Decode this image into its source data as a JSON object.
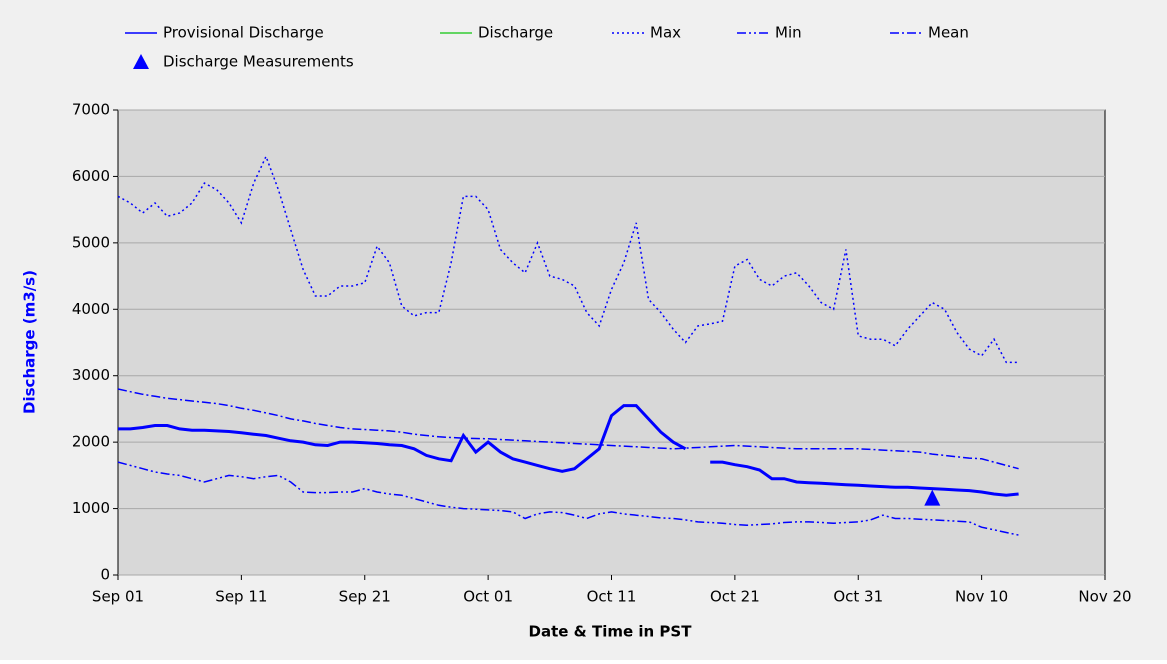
{
  "chart_data": {
    "type": "line",
    "xlabel": "Date & Time in PST",
    "ylabel": "Discharge (m3/s)",
    "x": [
      "Sep 01",
      "Sep 02",
      "Sep 03",
      "Sep 04",
      "Sep 05",
      "Sep 06",
      "Sep 07",
      "Sep 08",
      "Sep 09",
      "Sep 10",
      "Sep 11",
      "Sep 12",
      "Sep 13",
      "Sep 14",
      "Sep 15",
      "Sep 16",
      "Sep 17",
      "Sep 18",
      "Sep 19",
      "Sep 20",
      "Sep 21",
      "Sep 22",
      "Sep 23",
      "Sep 24",
      "Sep 25",
      "Sep 26",
      "Sep 27",
      "Sep 28",
      "Sep 29",
      "Sep 30",
      "Oct 01",
      "Oct 02",
      "Oct 03",
      "Oct 04",
      "Oct 05",
      "Oct 06",
      "Oct 07",
      "Oct 08",
      "Oct 09",
      "Oct 10",
      "Oct 11",
      "Oct 12",
      "Oct 13",
      "Oct 14",
      "Oct 15",
      "Oct 16",
      "Oct 17",
      "Oct 18",
      "Oct 19",
      "Oct 20",
      "Oct 21",
      "Oct 22",
      "Oct 23",
      "Oct 24",
      "Oct 25",
      "Oct 26",
      "Oct 27",
      "Oct 28",
      "Oct 29",
      "Oct 30",
      "Oct 31",
      "Nov 01",
      "Nov 02",
      "Nov 03",
      "Nov 04",
      "Nov 05",
      "Nov 06",
      "Nov 07",
      "Nov 08",
      "Nov 09",
      "Nov 10",
      "Nov 11",
      "Nov 12",
      "Nov 13"
    ],
    "series": [
      {
        "name": "Provisional Discharge",
        "color": "#0000ff",
        "style": "solid",
        "width": 3,
        "values": [
          2200,
          2200,
          2220,
          2250,
          2250,
          2200,
          2180,
          2180,
          2170,
          2160,
          2140,
          2120,
          2100,
          2060,
          2020,
          2000,
          1960,
          1950,
          2000,
          2000,
          1990,
          1980,
          1960,
          1950,
          1900,
          1800,
          1750,
          1720,
          2100,
          1850,
          2000,
          1850,
          1750,
          1700,
          1650,
          1600,
          1560,
          1600,
          1750,
          1900,
          2400,
          2550,
          2550,
          2350,
          2150,
          2000,
          1900,
          null,
          1700,
          1700,
          1660,
          1630,
          1580,
          1450,
          1450,
          1400,
          1390,
          1380,
          1370,
          1360,
          1350,
          1340,
          1330,
          1320,
          1320,
          1310,
          1300,
          1290,
          1280,
          1270,
          1250,
          1220,
          1200,
          1220
        ]
      },
      {
        "name": "Discharge",
        "color": "#33cc33",
        "style": "solid",
        "width": 1.5,
        "values": [
          null,
          null,
          null,
          null,
          null,
          null,
          null,
          null,
          null,
          null,
          null,
          null,
          null,
          null,
          null,
          null,
          null,
          null,
          null,
          null,
          null,
          null,
          null,
          null,
          null,
          null,
          null,
          null,
          null,
          null,
          null,
          null,
          null,
          null,
          null,
          null,
          null,
          null,
          null,
          null,
          null,
          null,
          null,
          null,
          null,
          null,
          null,
          null,
          null,
          null,
          null,
          null,
          null,
          null,
          null,
          null,
          null,
          null,
          null,
          null,
          null,
          null,
          null,
          null,
          null,
          null,
          null,
          null,
          null,
          null,
          null,
          null,
          null,
          null
        ]
      },
      {
        "name": "Max",
        "color": "#0000ff",
        "style": "dotted",
        "width": 1.5,
        "values": [
          5700,
          5600,
          5450,
          5600,
          5400,
          5450,
          5600,
          5900,
          5800,
          5600,
          5300,
          5900,
          6300,
          5800,
          5200,
          4600,
          4200,
          4200,
          4350,
          4350,
          4400,
          4950,
          4700,
          4050,
          3900,
          3950,
          3950,
          4700,
          5700,
          5700,
          5500,
          4900,
          4700,
          4550,
          5000,
          4500,
          4450,
          4350,
          3950,
          3750,
          4300,
          4700,
          5300,
          4150,
          3950,
          3700,
          3500,
          3750,
          3780,
          3820,
          4650,
          4750,
          4450,
          4350,
          4500,
          4550,
          4350,
          4100,
          4000,
          4900,
          3600,
          3550,
          3550,
          3450,
          3700,
          3900,
          4100,
          4000,
          3650,
          3400,
          3300,
          3550,
          3200,
          3200
        ]
      },
      {
        "name": "Min",
        "color": "#0000ff",
        "style": "dashdotdot",
        "width": 1.5,
        "values": [
          1700,
          1650,
          1600,
          1550,
          1520,
          1500,
          1450,
          1400,
          1450,
          1500,
          1480,
          1450,
          1480,
          1500,
          1400,
          1250,
          1240,
          1240,
          1250,
          1250,
          1300,
          1250,
          1220,
          1200,
          1150,
          1100,
          1050,
          1020,
          1000,
          990,
          980,
          970,
          950,
          850,
          920,
          950,
          940,
          900,
          850,
          920,
          950,
          920,
          900,
          880,
          860,
          850,
          830,
          800,
          790,
          780,
          760,
          750,
          760,
          770,
          790,
          800,
          800,
          790,
          780,
          790,
          800,
          830,
          900,
          850,
          850,
          840,
          830,
          820,
          810,
          800,
          720,
          680,
          640,
          600
        ]
      },
      {
        "name": "Mean",
        "color": "#0000ff",
        "style": "dashdot",
        "width": 1.5,
        "values": [
          2800,
          2760,
          2720,
          2690,
          2660,
          2640,
          2620,
          2600,
          2580,
          2550,
          2510,
          2480,
          2440,
          2400,
          2350,
          2320,
          2280,
          2250,
          2220,
          2200,
          2190,
          2180,
          2170,
          2150,
          2120,
          2100,
          2080,
          2070,
          2060,
          2055,
          2050,
          2040,
          2030,
          2020,
          2010,
          2000,
          1990,
          1980,
          1970,
          1960,
          1950,
          1940,
          1930,
          1920,
          1910,
          1900,
          1910,
          1920,
          1930,
          1940,
          1950,
          1940,
          1930,
          1920,
          1910,
          1900,
          1900,
          1900,
          1900,
          1900,
          1900,
          1890,
          1880,
          1870,
          1860,
          1850,
          1820,
          1800,
          1780,
          1760,
          1750,
          1700,
          1650,
          1600
        ]
      }
    ],
    "measurements": {
      "name": "Discharge Measurements",
      "color": "#0000ff",
      "x": [
        "Nov 06"
      ],
      "values": [
        1150
      ]
    },
    "xlim": [
      "Sep 01",
      "Nov 20"
    ],
    "xticks": [
      "Sep 01",
      "Sep 11",
      "Sep 21",
      "Oct 01",
      "Oct 11",
      "Oct 21",
      "Oct 31",
      "Nov 10",
      "Nov 20"
    ],
    "ylim": [
      0,
      7000
    ],
    "yticks": [
      0,
      1000,
      2000,
      3000,
      4000,
      5000,
      6000,
      7000
    ],
    "grid": true
  }
}
